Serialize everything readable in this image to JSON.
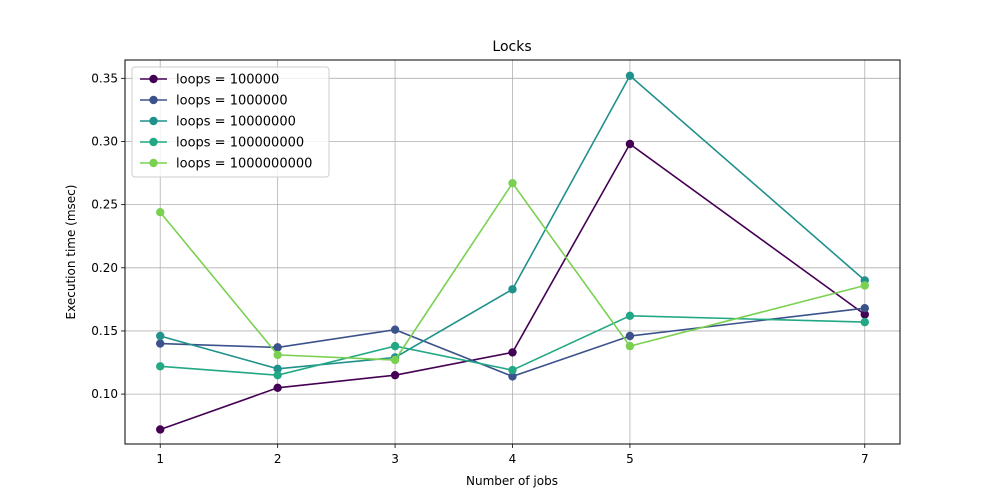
{
  "chart_data": {
    "type": "line",
    "title": "Locks",
    "xlabel": "Number of jobs",
    "ylabel": "Execution time (msec)",
    "x": [
      1,
      2,
      3,
      4,
      5,
      7
    ],
    "x_ticks": [
      1,
      2,
      3,
      4,
      5,
      7
    ],
    "y_ticks": [
      0.1,
      0.15,
      0.2,
      0.25,
      0.3,
      0.35
    ],
    "y_tick_labels": [
      "0.10",
      "0.15",
      "0.20",
      "0.25",
      "0.30",
      "0.35"
    ],
    "xlim": [
      0.7,
      7.3
    ],
    "ylim": [
      0.0605,
      0.3645
    ],
    "grid": true,
    "legend_position": "upper-left",
    "series": [
      {
        "name": "loops = 100000",
        "color": "#440154",
        "values": [
          0.072,
          0.105,
          0.115,
          0.133,
          0.298,
          0.163
        ]
      },
      {
        "name": "loops = 1000000",
        "color": "#3b528b",
        "values": [
          0.14,
          0.137,
          0.151,
          0.114,
          0.146,
          0.168
        ]
      },
      {
        "name": "loops = 10000000",
        "color": "#21918c",
        "values": [
          0.146,
          0.12,
          0.129,
          0.183,
          0.352,
          0.19
        ]
      },
      {
        "name": "loops = 100000000",
        "color": "#22a884",
        "values": [
          0.122,
          0.115,
          0.138,
          0.119,
          0.162,
          0.157
        ]
      },
      {
        "name": "loops = 1000000000",
        "color": "#7ad151",
        "values": [
          0.244,
          0.131,
          0.127,
          0.267,
          0.138,
          0.186
        ]
      }
    ]
  }
}
